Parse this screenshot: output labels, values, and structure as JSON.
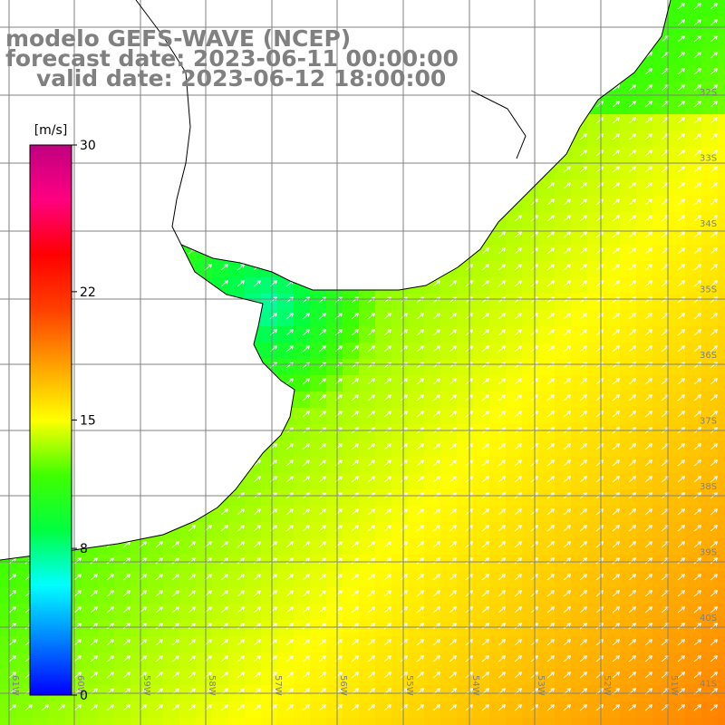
{
  "header": {
    "line1": "modelo GEFS-WAVE (NCEP)",
    "line2": "forecast date: 2023-06-11 00:00:00",
    "line3": "valid date: 2023-06-12 18:00:00"
  },
  "colorbar": {
    "unit": "[m/s]",
    "min": 0,
    "max": 30,
    "ticks": [
      {
        "value": 30,
        "label": "30"
      },
      {
        "value": 22,
        "label": "22"
      },
      {
        "value": 15,
        "label": "15"
      },
      {
        "value": 8,
        "label": "8"
      },
      {
        "value": 0,
        "label": "0"
      }
    ],
    "stops": [
      "#0000ff",
      "#0080ff",
      "#00ffff",
      "#00ff40",
      "#40ff00",
      "#ffff00",
      "#ffa000",
      "#ff4000",
      "#ff0000",
      "#ff0080",
      "#c00080"
    ]
  },
  "axes": {
    "lon_labels": [
      "61W",
      "60W",
      "59W",
      "58W",
      "57W",
      "56W",
      "55W",
      "54W",
      "53W",
      "52W",
      "51W"
    ],
    "lat_labels": [
      "32S",
      "33S",
      "34S",
      "35S",
      "36S",
      "37S",
      "38S",
      "39S",
      "40S",
      "41S"
    ]
  },
  "colors": {
    "land": "#ffffff",
    "grid": "#808080",
    "coast": "#000000",
    "arrows": "#ffffff",
    "title": "#808080"
  }
}
